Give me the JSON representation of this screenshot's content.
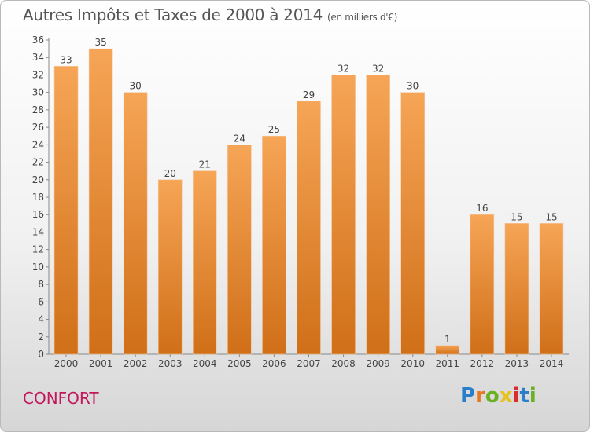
{
  "title": "Autres Impôts et Taxes de 2000 à 2014",
  "subtitle": "(en milliers d'€)",
  "commune": "CONFORT",
  "logo": {
    "text": "Proxiti",
    "letters": [
      {
        "ch": "P",
        "color": "#2a7fc8"
      },
      {
        "ch": "r",
        "color": "#e87722"
      },
      {
        "ch": "o",
        "color": "#6ab023"
      },
      {
        "ch": "x",
        "color": "#e8c11f"
      },
      {
        "ch": "i",
        "color": "#d62f2f"
      },
      {
        "ch": "t",
        "color": "#2a7fc8"
      },
      {
        "ch": "i",
        "color": "#6ab023"
      }
    ]
  },
  "chart_data": {
    "type": "bar",
    "title": "Autres Impôts et Taxes de 2000 à 2014",
    "subtitle": "(en milliers d'€)",
    "categories": [
      "2000",
      "2001",
      "2002",
      "2003",
      "2004",
      "2005",
      "2006",
      "2007",
      "2008",
      "2009",
      "2010",
      "2011",
      "2012",
      "2013",
      "2014"
    ],
    "values": [
      33,
      35,
      30,
      20,
      21,
      24,
      25,
      29,
      32,
      32,
      30,
      1,
      16,
      15,
      15
    ],
    "ylim": [
      0,
      36
    ],
    "yticks": [
      0,
      2,
      4,
      6,
      8,
      10,
      12,
      14,
      16,
      18,
      20,
      22,
      24,
      26,
      28,
      30,
      32,
      34,
      36
    ],
    "grid": false,
    "bar_color_top": "#f6a556",
    "bar_color_bottom": "#d06f18"
  }
}
